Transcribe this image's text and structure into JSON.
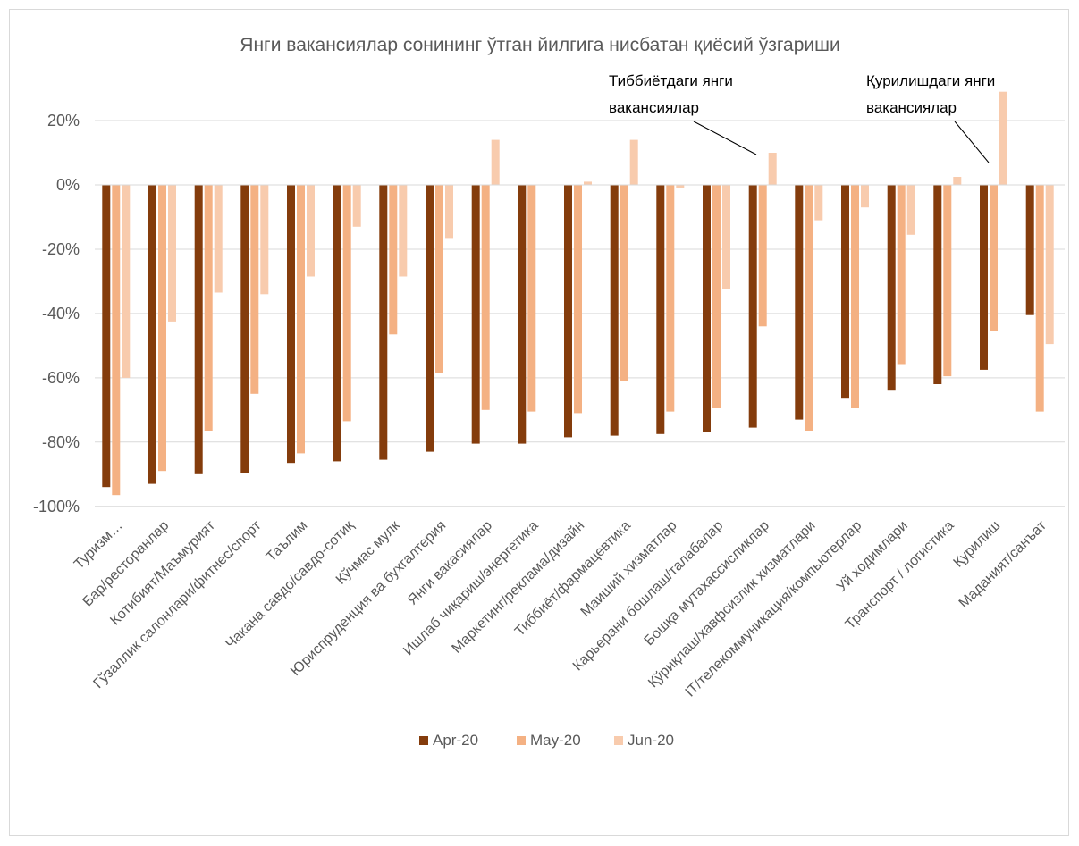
{
  "chart_data": {
    "type": "bar",
    "title": "Янги вакансиялар сонининг ўтган йилгига нисбатан қиёсий ўзгариши",
    "xlabel": "",
    "ylabel": "",
    "ylim": [
      -100,
      30
    ],
    "yticks": [
      20,
      0,
      -20,
      -40,
      -60,
      -80,
      -100
    ],
    "ytick_labels": [
      "20%",
      "0%",
      "-20%",
      "-40%",
      "-60%",
      "-80%",
      "-100%"
    ],
    "grid": true,
    "legend_position": "bottom",
    "categories": [
      "Туризм…",
      "Бар/ресторанлар",
      "Котибият/Маъмурият",
      "Гўзаллик салонлари/фитнес/спорт",
      "Таълим",
      "Чакана савдо/савдо-сотиқ",
      "Кўчмас мулк",
      "Юриспруденция ва бухгалтерия",
      "Янги вакасиялар",
      "Ишлаб чиқариш/энергетика",
      "Маркетинг/реклама/дизайн",
      "Тиббиёт/фармацевтика",
      "Маиший хизматлар",
      "Карьерани бошлаш/талабалар",
      "Бошқа мутахассисликлар",
      "Қўриқлаш/хавфсизлик хизматлари",
      "IT/телекоммуникация/компьютерлар",
      "Уй ходимлари",
      "Транспорт / логистика",
      "Қурилиш",
      "Маданият/санъат"
    ],
    "series": [
      {
        "name": "Apr-20",
        "color": "#843c0c",
        "values": [
          -94,
          -93,
          -90,
          -89.5,
          -86.5,
          -86,
          -85.5,
          -83,
          -80.5,
          -80.5,
          -78.5,
          -78,
          -77.5,
          -77,
          -75.5,
          -73,
          -66.5,
          -64,
          -62,
          -57.5,
          -40.5
        ]
      },
      {
        "name": "May-20",
        "color": "#f4b183",
        "values": [
          -96.5,
          -89,
          -76.5,
          -65,
          -83.5,
          -73.5,
          -46.5,
          -58.5,
          -70,
          -70.5,
          -71,
          -61,
          -70.5,
          -69.5,
          -44,
          -76.5,
          -69.5,
          -56,
          -59.5,
          -45.5,
          -70.5
        ]
      },
      {
        "name": "Jun-20",
        "color": "#f8cbad",
        "values": [
          -60,
          -42.5,
          -33.5,
          -34,
          -28.5,
          -13,
          -28.5,
          -16.5,
          14,
          null,
          1,
          14,
          -1,
          -32.5,
          10,
          -11,
          -7,
          -15.5,
          2.5,
          29,
          -49.5
        ]
      }
    ],
    "annotations": [
      {
        "lines": [
          "Тиббиётдаги янги",
          "вакансиялар"
        ]
      },
      {
        "lines": [
          "Қурилишдаги янги",
          "вакансиялар"
        ]
      }
    ]
  }
}
